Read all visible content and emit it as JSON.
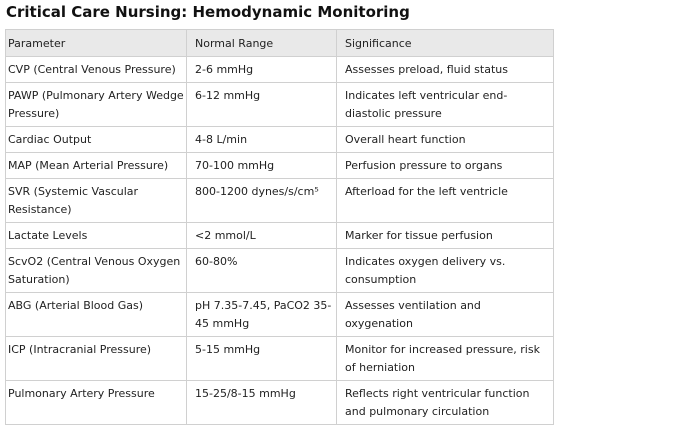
{
  "title": "Critical Care Nursing: Hemodynamic Monitoring",
  "table": {
    "headers": [
      "Parameter",
      "Normal Range",
      "Significance"
    ],
    "rows": [
      [
        "CVP (Central Venous Pressure)",
        "2-6 mmHg",
        "Assesses preload, fluid status"
      ],
      [
        "PAWP (Pulmonary Artery Wedge Pressure)",
        "6-12 mmHg",
        "Indicates left ventricular end-diastolic pressure"
      ],
      [
        "Cardiac Output",
        "4-8 L/min",
        "Overall heart function"
      ],
      [
        "MAP (Mean Arterial Pressure)",
        "70-100 mmHg",
        "Perfusion pressure to organs"
      ],
      [
        "SVR (Systemic Vascular Resistance)",
        "800-1200 dynes/s/cm⁵",
        "Afterload for the left ventricle"
      ],
      [
        "Lactate Levels",
        "<2 mmol/L",
        "Marker for tissue perfusion"
      ],
      [
        "ScvO2 (Central Venous Oxygen Saturation)",
        "60-80%",
        "Indicates oxygen delivery vs. consumption"
      ],
      [
        "ABG (Arterial Blood Gas)",
        "pH 7.35-7.45, PaCO2 35-45 mmHg",
        "Assesses ventilation and oxygenation"
      ],
      [
        "ICP (Intracranial Pressure)",
        "5-15 mmHg",
        "Monitor for increased pressure, risk of herniation"
      ],
      [
        "Pulmonary Artery Pressure",
        "15-25/8-15 mmHg",
        "Reflects right ventricular function and pulmonary circulation"
      ]
    ]
  }
}
